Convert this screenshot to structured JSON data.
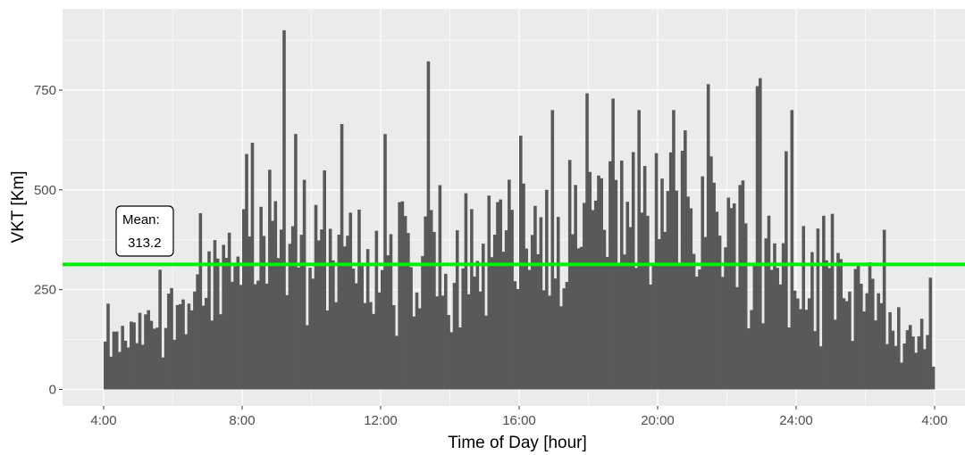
{
  "chart_data": {
    "type": "bar",
    "title": "",
    "xlabel": "Time of Day [hour]",
    "ylabel": "VKT [Km]",
    "bin_minutes": 5,
    "x_start_label": "4:00",
    "x_ticks": [
      "4:00",
      "8:00",
      "12:00",
      "16:00",
      "20:00",
      "24:00",
      "4:00"
    ],
    "y_ticks": [
      0,
      250,
      500,
      750
    ],
    "xlim_hours": [
      3.75,
      28.1
    ],
    "ylim": [
      -40,
      950
    ],
    "grid": true,
    "bar_color": "#595959",
    "panel_color": "#ebebeb",
    "grid_color": "#ffffff",
    "mean_line": {
      "value": 313.2,
      "color": "#00ee00",
      "label_lines": [
        "Mean:",
        "313.2"
      ]
    },
    "profile_hours": [
      4,
      5,
      6,
      7,
      8,
      9,
      10,
      11,
      12,
      13,
      14,
      15,
      16,
      17,
      18,
      19,
      20,
      21,
      22,
      23,
      24,
      25,
      26,
      27,
      27.5,
      28
    ],
    "profile_values": [
      115,
      150,
      220,
      300,
      420,
      430,
      360,
      330,
      350,
      380,
      380,
      400,
      420,
      440,
      460,
      470,
      490,
      480,
      460,
      420,
      360,
      280,
      230,
      180,
      110,
      130
    ],
    "spikes": [
      {
        "hour": 9.2,
        "value": 900
      },
      {
        "hour": 13.3,
        "value": 822
      },
      {
        "hour": 17.9,
        "value": 742
      },
      {
        "hour": 16.9,
        "value": 700
      },
      {
        "hour": 21.4,
        "value": 765
      },
      {
        "hour": 22.9,
        "value": 780
      },
      {
        "hour": 22.8,
        "value": 760
      },
      {
        "hour": 8.05,
        "value": 590
      },
      {
        "hour": 10.8,
        "value": 665
      },
      {
        "hour": 12.1,
        "value": 640
      },
      {
        "hour": 19.4,
        "value": 700
      },
      {
        "hour": 20.4,
        "value": 700
      },
      {
        "hour": 23.8,
        "value": 700
      },
      {
        "hour": 9.5,
        "value": 640
      },
      {
        "hour": 4.05,
        "value": 215
      },
      {
        "hour": 5.6,
        "value": 300
      },
      {
        "hour": 25.0,
        "value": 440
      },
      {
        "hour": 26.5,
        "value": 400
      },
      {
        "hour": 27.8,
        "value": 280
      }
    ]
  }
}
